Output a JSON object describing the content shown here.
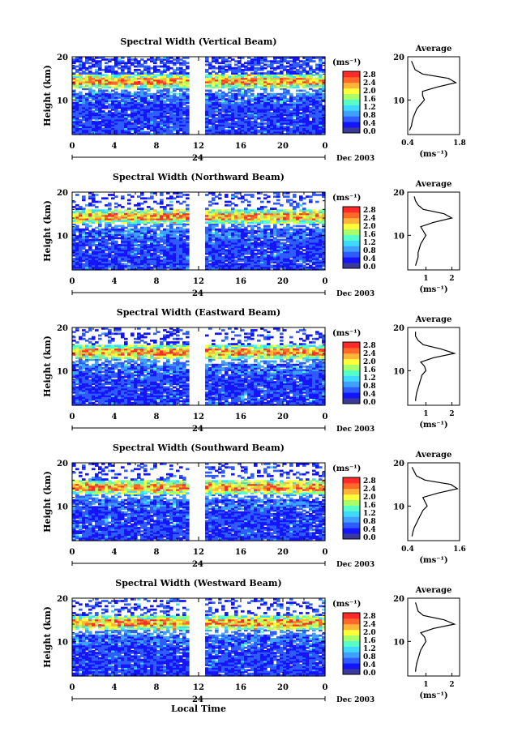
{
  "figure": {
    "colorbar_unit": "(ms⁻¹)",
    "colorbar_ticks": [
      "2.8",
      "2.4",
      "2.0",
      "1.6",
      "1.2",
      "0.8",
      "0.4",
      "0.0"
    ],
    "time_ticks": [
      "0",
      "4",
      "8",
      "12",
      "16",
      "20",
      "0"
    ],
    "day_label": "24",
    "month_label": "Dec 2003",
    "x_axis_label": "Local Time",
    "y_axis_label": "Height (km)",
    "avg_title": "Average",
    "avg_xlabel": "(ms⁻¹)",
    "height_ticks": [
      "20",
      "10"
    ],
    "colors": {
      "scale": [
        "#3a3a9a",
        "#1414ff",
        "#2f5cff",
        "#3fa0ff",
        "#3fd9ff",
        "#56ffc8",
        "#a8ff6a",
        "#ffff3a",
        "#ffb43a",
        "#ff6a2a",
        "#ff2a2a"
      ],
      "background": "#ffffff"
    }
  },
  "chart_data": [
    {
      "type": "heatmap",
      "title": "Spectral Width (Vertical Beam)",
      "xlabel": "",
      "ylabel": "Height (km)",
      "x_range_hours": [
        0,
        24
      ],
      "y_range_km": [
        2,
        20
      ],
      "data_gap_hours": [
        11,
        12.5
      ],
      "peak_layer_km": 14.5,
      "average_profile": {
        "xticks": [
          "0.4",
          "1.8"
        ],
        "xlim": [
          0.4,
          1.8
        ],
        "height_km": [
          3,
          4,
          5,
          6,
          7,
          8,
          9,
          10,
          11,
          12,
          13,
          14,
          15,
          16,
          17,
          18,
          19
        ],
        "values": [
          0.45,
          0.5,
          0.52,
          0.55,
          0.6,
          0.65,
          0.75,
          0.85,
          0.8,
          0.8,
          1.2,
          1.7,
          1.5,
          0.8,
          0.6,
          0.55,
          0.5
        ]
      }
    },
    {
      "type": "heatmap",
      "title": "Spectral Width (Northward Beam)",
      "xlabel": "",
      "ylabel": "Height (km)",
      "x_range_hours": [
        0,
        24
      ],
      "y_range_km": [
        2,
        20
      ],
      "data_gap_hours": [
        11,
        12.5
      ],
      "peak_layer_km": 14.5,
      "average_profile": {
        "xticks": [
          "1",
          "2"
        ],
        "xlim": [
          0.3,
          2.3
        ],
        "height_km": [
          3,
          4,
          5,
          6,
          7,
          8,
          9,
          10,
          11,
          12,
          13,
          14,
          15,
          16,
          17,
          18,
          19
        ],
        "values": [
          0.6,
          0.65,
          0.7,
          0.7,
          0.75,
          0.8,
          0.9,
          1.0,
          0.9,
          0.8,
          1.3,
          2.0,
          1.7,
          0.9,
          0.7,
          0.6,
          0.55
        ]
      }
    },
    {
      "type": "heatmap",
      "title": "Spectral Width (Eastward Beam)",
      "xlabel": "",
      "ylabel": "Height (km)",
      "x_range_hours": [
        0,
        24
      ],
      "y_range_km": [
        2,
        20
      ],
      "data_gap_hours": [
        11,
        12.5
      ],
      "peak_layer_km": 14.5,
      "average_profile": {
        "xticks": [
          "1",
          "2"
        ],
        "xlim": [
          0.3,
          2.3
        ],
        "height_km": [
          3,
          4,
          5,
          6,
          7,
          8,
          9,
          10,
          11,
          12,
          13,
          14,
          15,
          16,
          17,
          18,
          19
        ],
        "values": [
          0.6,
          0.62,
          0.65,
          0.7,
          0.75,
          0.8,
          0.85,
          1.0,
          0.95,
          0.8,
          1.3,
          2.1,
          1.6,
          0.9,
          0.7,
          0.6,
          0.6
        ]
      }
    },
    {
      "type": "heatmap",
      "title": "Spectral Width (Southward Beam)",
      "xlabel": "",
      "ylabel": "Height (km)",
      "x_range_hours": [
        0,
        24
      ],
      "y_range_km": [
        2,
        20
      ],
      "data_gap_hours": [
        11,
        12.5
      ],
      "peak_layer_km": 14.5,
      "average_profile": {
        "xticks": [
          "0.4",
          "1.6"
        ],
        "xlim": [
          0.4,
          1.6
        ],
        "height_km": [
          3,
          4,
          5,
          6,
          7,
          8,
          9,
          10,
          11,
          12,
          13,
          14,
          15,
          16,
          17,
          18,
          19
        ],
        "values": [
          0.5,
          0.52,
          0.55,
          0.6,
          0.65,
          0.7,
          0.75,
          0.85,
          0.8,
          0.75,
          1.1,
          1.55,
          1.4,
          0.8,
          0.6,
          0.55,
          0.5
        ]
      }
    },
    {
      "type": "heatmap",
      "title": "Spectral Width (Westward Beam)",
      "xlabel": "",
      "ylabel": "Height (km)",
      "x_range_hours": [
        0,
        24
      ],
      "y_range_km": [
        2,
        20
      ],
      "data_gap_hours": [
        11,
        12.5
      ],
      "peak_layer_km": 14.5,
      "average_profile": {
        "xticks": [
          "1",
          "2"
        ],
        "xlim": [
          0.3,
          2.3
        ],
        "height_km": [
          3,
          4,
          5,
          6,
          7,
          8,
          9,
          10,
          11,
          12,
          13,
          14,
          15,
          16,
          17,
          18,
          19
        ],
        "values": [
          0.6,
          0.62,
          0.65,
          0.7,
          0.75,
          0.8,
          0.9,
          1.0,
          0.95,
          0.8,
          1.3,
          2.1,
          1.7,
          0.9,
          0.7,
          0.65,
          0.6
        ]
      }
    }
  ]
}
